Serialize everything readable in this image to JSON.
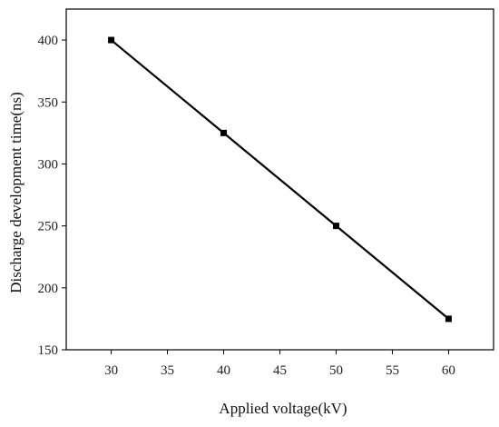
{
  "chart_data": {
    "type": "line",
    "title": "",
    "xlabel": "Applied voltage(kV)",
    "ylabel": "Discharge development time(ns)",
    "x": [
      30,
      40,
      50,
      60
    ],
    "series": [
      {
        "values": [
          400,
          325,
          250,
          175
        ]
      }
    ],
    "xlim": [
      26,
      64
    ],
    "ylim": [
      150,
      425
    ],
    "xticks": [
      "30",
      "35",
      "40",
      "45",
      "50",
      "55",
      "60"
    ],
    "yticks": [
      "150",
      "200",
      "250",
      "300",
      "350",
      "400"
    ],
    "marker": "square",
    "grid": false,
    "legend": "none",
    "colors": {
      "line": "#000000",
      "axis": "#000000",
      "background": "#ffffff"
    }
  }
}
